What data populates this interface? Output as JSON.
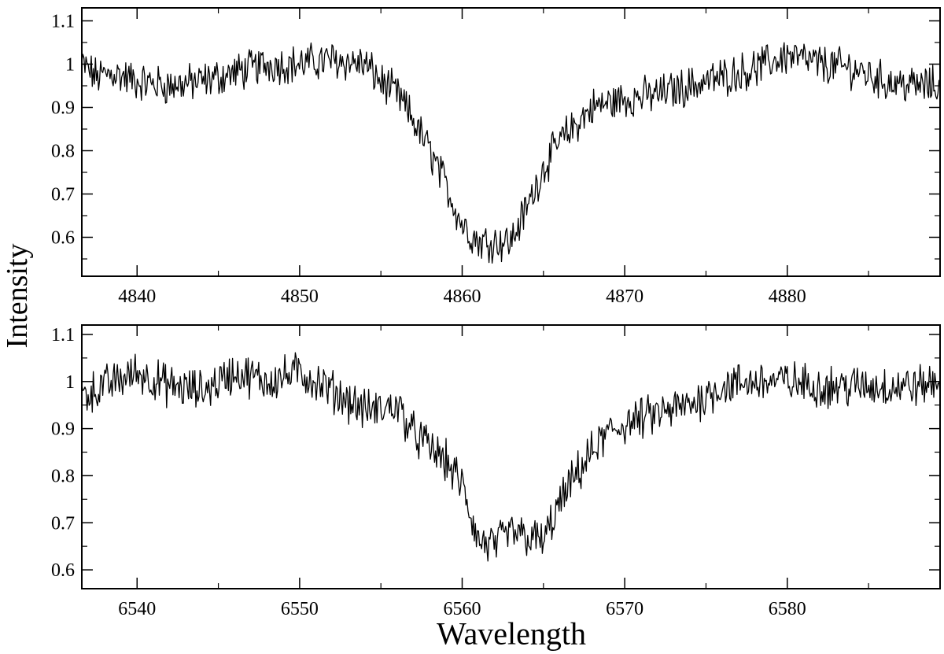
{
  "figure": {
    "ylabel": "Intensity",
    "xlabel": "Wavelength"
  },
  "chart_data": [
    {
      "type": "line",
      "title": "",
      "xlim": [
        4836.6,
        4889.4
      ],
      "ylim": [
        0.51,
        1.13
      ],
      "xticks": [
        4840,
        4850,
        4860,
        4870,
        4880
      ],
      "xtick_labels": [
        "4840",
        "4850",
        "4860",
        "4870",
        "4880"
      ],
      "yticks": [
        0.6,
        0.7,
        0.8,
        0.9,
        1.0,
        1.1
      ],
      "ytick_labels": [
        "0.6",
        "0.7",
        "0.8",
        "0.9",
        "1",
        "1.1"
      ],
      "grid": false,
      "series": [
        {
          "x": [
            4836.6,
            4837.5,
            4838.5,
            4840,
            4842,
            4844,
            4846,
            4848,
            4850,
            4852,
            4854,
            4855,
            4856,
            4857,
            4858,
            4859,
            4860,
            4861,
            4862,
            4863,
            4864,
            4865,
            4866,
            4867,
            4868,
            4870,
            4872,
            4874,
            4876,
            4878,
            4880,
            4882,
            4884,
            4886,
            4888,
            4889.4
          ],
          "values": [
            1.0,
            0.97,
            0.98,
            0.96,
            0.95,
            0.96,
            0.98,
            1.0,
            1.0,
            1.01,
            1.0,
            0.96,
            0.93,
            0.87,
            0.8,
            0.72,
            0.63,
            0.59,
            0.59,
            0.59,
            0.67,
            0.76,
            0.82,
            0.86,
            0.9,
            0.92,
            0.93,
            0.95,
            0.97,
            0.99,
            1.02,
            1.0,
            0.99,
            0.96,
            0.95,
            0.95
          ]
        }
      ]
    },
    {
      "type": "line",
      "title": "",
      "xlim": [
        6536.6,
        6589.4
      ],
      "ylim": [
        0.56,
        1.12
      ],
      "xticks": [
        6540,
        6550,
        6560,
        6570,
        6580
      ],
      "xtick_labels": [
        "6540",
        "6550",
        "6560",
        "6570",
        "6580"
      ],
      "yticks": [
        0.6,
        0.7,
        0.8,
        0.9,
        1.0,
        1.1
      ],
      "ytick_labels": [
        "0.6",
        "0.7",
        "0.8",
        "0.9",
        "1",
        "1.1"
      ],
      "grid": false,
      "series": [
        {
          "x": [
            6536.6,
            6538,
            6540,
            6542,
            6544,
            6546,
            6548,
            6550,
            6552,
            6553,
            6554,
            6555,
            6556,
            6557,
            6558,
            6559,
            6560,
            6561,
            6562,
            6563,
            6564,
            6565,
            6566,
            6567,
            6568,
            6569,
            6570,
            6572,
            6574,
            6576,
            6578,
            6580,
            6582,
            6584,
            6586,
            6588,
            6589.4
          ],
          "values": [
            0.97,
            0.99,
            1.02,
            0.99,
            0.98,
            1.02,
            1.0,
            1.02,
            0.98,
            0.96,
            0.94,
            0.94,
            0.95,
            0.89,
            0.86,
            0.83,
            0.78,
            0.66,
            0.65,
            0.68,
            0.67,
            0.66,
            0.74,
            0.8,
            0.85,
            0.89,
            0.91,
            0.93,
            0.95,
            0.99,
            1.0,
            1.0,
            0.99,
            0.99,
            0.99,
            0.99,
            1.0
          ]
        }
      ]
    }
  ]
}
